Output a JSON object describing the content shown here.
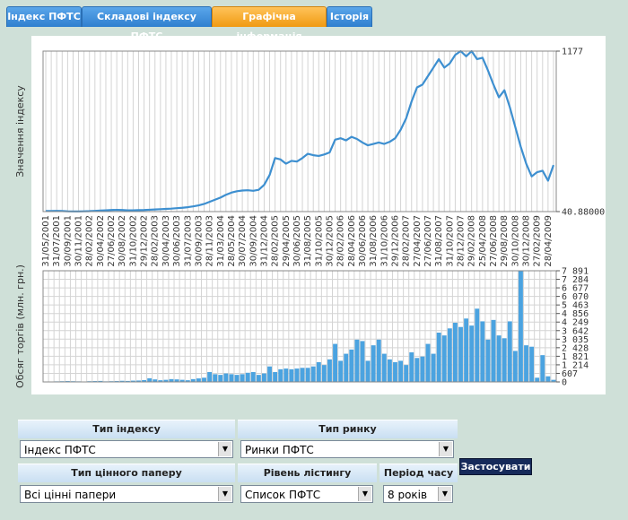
{
  "tabs": [
    "Індекс ПФТС",
    "Складові індексу ПФТС",
    "Графічна інформація",
    "Історія"
  ],
  "chart_data": [
    {
      "type": "line",
      "y_label": "Значення індексу",
      "color": "#3d8fd0",
      "categories": [
        "31/05/2001",
        null,
        "31/07/2001",
        null,
        "30/09/2001",
        null,
        "30/11/2001",
        null,
        "28/02/2002",
        null,
        "30/04/2002",
        null,
        "27/06/2002",
        null,
        "30/08/2002",
        null,
        "31/10/2002",
        null,
        "29/12/2002",
        null,
        "28/02/2003",
        null,
        "30/04/2003",
        null,
        "30/06/2003",
        null,
        "31/07/2003",
        null,
        "30/09/2003",
        null,
        "28/11/2003",
        null,
        "31/03/2004",
        null,
        "28/05/2004",
        null,
        "30/07/2004",
        null,
        "30/09/2004",
        null,
        "31/12/2004",
        null,
        "28/02/2005",
        null,
        "29/04/2005",
        null,
        "30/06/2005",
        null,
        "31/08/2005",
        null,
        "31/10/2005",
        null,
        "30/12/2005",
        null,
        "28/02/2006",
        null,
        "28/04/2006",
        null,
        "30/06/2006",
        null,
        "31/08/2006",
        null,
        "31/10/2006",
        null,
        "29/12/2006",
        null,
        "28/02/2007",
        null,
        "27/04/2007",
        null,
        "27/06/2007",
        null,
        "31/08/2007",
        null,
        "31/10/2007",
        null,
        "28/12/2007",
        null,
        "29/02/2008",
        null,
        "25/04/2008",
        null,
        "27/06/2008",
        null,
        "29/08/2008",
        null,
        "30/10/2008",
        null,
        "30/12/2008",
        null,
        "27/02/2009",
        null,
        "28/04/2009",
        null
      ],
      "values": [
        45,
        45,
        46,
        45,
        43,
        42,
        42,
        43,
        44,
        46,
        48,
        50,
        52,
        53,
        52,
        50,
        50,
        51,
        52,
        54,
        56,
        58,
        60,
        62,
        65,
        68,
        72,
        78,
        85,
        95,
        110,
        125,
        140,
        160,
        175,
        185,
        190,
        192,
        188,
        195,
        230,
        300,
        420,
        410,
        380,
        400,
        395,
        420,
        450,
        440,
        435,
        445,
        460,
        550,
        560,
        545,
        570,
        555,
        530,
        510,
        520,
        530,
        520,
        535,
        560,
        620,
        700,
        820,
        920,
        940,
        1000,
        1060,
        1120,
        1060,
        1090,
        1150,
        1177,
        1140,
        1177,
        1120,
        1130,
        1040,
        940,
        850,
        900,
        780,
        640,
        500,
        380,
        290,
        320,
        330,
        260,
        370
      ],
      "ylim": [
        40.88,
        1177
      ],
      "yticks": [
        {
          "value": 40.88,
          "label": "40.88000"
        },
        1177
      ]
    },
    {
      "type": "bar",
      "y_label": "Обсяг торгів (млн. грн.)",
      "color": "#4ba3e0",
      "grid": true,
      "values": [
        20,
        30,
        40,
        50,
        60,
        50,
        40,
        30,
        50,
        60,
        70,
        40,
        50,
        60,
        80,
        70,
        90,
        100,
        130,
        260,
        180,
        120,
        150,
        200,
        180,
        150,
        120,
        200,
        250,
        300,
        700,
        550,
        500,
        600,
        550,
        500,
        550,
        650,
        700,
        500,
        600,
        1100,
        700,
        900,
        950,
        900,
        950,
        1000,
        1000,
        1100,
        1400,
        1200,
        1600,
        2700,
        1500,
        2000,
        2300,
        3000,
        2900,
        1500,
        2600,
        3000,
        2000,
        1600,
        1400,
        1500,
        1200,
        2100,
        1700,
        1800,
        2700,
        2000,
        3500,
        3300,
        3800,
        4200,
        3900,
        4500,
        4000,
        5200,
        4300,
        3000,
        4400,
        3300,
        3100,
        4300,
        2200,
        7891,
        2600,
        2500,
        300,
        1900,
        400,
        150
      ],
      "ylim": [
        0,
        7891
      ],
      "yticks": [
        0,
        607,
        {
          "value": 1214,
          "label": "1 214"
        },
        {
          "value": 1821,
          "label": "1 821"
        },
        {
          "value": 2428,
          "label": "2 428"
        },
        {
          "value": 3035,
          "label": "3 035"
        },
        {
          "value": 3642,
          "label": "3 642"
        },
        {
          "value": 4249,
          "label": "4 249"
        },
        {
          "value": 4856,
          "label": "4 856"
        },
        {
          "value": 5463,
          "label": "5 463"
        },
        {
          "value": 6070,
          "label": "6 070"
        },
        {
          "value": 6677,
          "label": "6 677"
        },
        {
          "value": 7284,
          "label": "7 284"
        },
        {
          "value": 7891,
          "label": "7 891"
        }
      ]
    }
  ],
  "form": {
    "headers": [
      "Тип індексу",
      "Тип ринку",
      "Тип цінного паперу",
      "Рівень лістингу",
      "Період часу"
    ],
    "selects": [
      "Індекс ПФТС",
      "Ринки ПФТС",
      "Всі цінні папери",
      "Список ПФТС",
      "8 років"
    ],
    "button": "Застосувати"
  }
}
